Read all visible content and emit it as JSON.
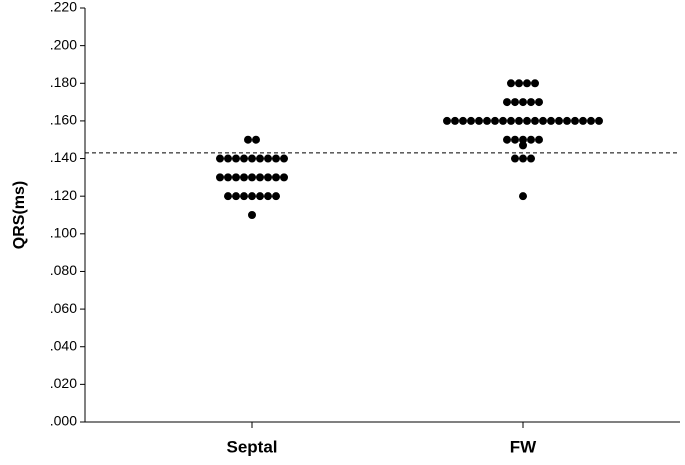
{
  "chart_data": {
    "type": "dotplot",
    "y_label": "QRS(ms)",
    "categories": [
      "Septal",
      "FW"
    ],
    "values": [
      [
        0.15,
        0.15,
        0.14,
        0.14,
        0.14,
        0.14,
        0.14,
        0.14,
        0.14,
        0.14,
        0.14,
        0.13,
        0.13,
        0.13,
        0.13,
        0.13,
        0.13,
        0.13,
        0.13,
        0.13,
        0.12,
        0.12,
        0.12,
        0.12,
        0.12,
        0.12,
        0.12,
        0.11
      ],
      [
        0.18,
        0.18,
        0.18,
        0.18,
        0.17,
        0.17,
        0.17,
        0.17,
        0.17,
        0.16,
        0.16,
        0.16,
        0.16,
        0.16,
        0.16,
        0.16,
        0.16,
        0.16,
        0.16,
        0.16,
        0.16,
        0.16,
        0.16,
        0.16,
        0.16,
        0.16,
        0.16,
        0.16,
        0.16,
        0.15,
        0.15,
        0.15,
        0.15,
        0.15,
        0.147,
        0.14,
        0.14,
        0.14,
        0.12
      ]
    ],
    "color": "#000000",
    "reference_line": 0.143,
    "ylim": [
      0,
      0.22
    ],
    "yticks": [
      {
        "value": 0,
        "label": ".000"
      },
      {
        "value": 0.02,
        "label": ".020"
      },
      {
        "value": 0.04,
        "label": ".040"
      },
      {
        "value": 0.06,
        "label": ".060"
      },
      {
        "value": 0.08,
        "label": ".080"
      },
      {
        "value": 0.1,
        "label": ".100"
      },
      {
        "value": 0.12,
        "label": ".120"
      },
      {
        "value": 0.14,
        "label": ".140"
      },
      {
        "value": 0.16,
        "label": ".160"
      },
      {
        "value": 0.18,
        "label": ".180"
      },
      {
        "value": 0.2,
        "label": ".200"
      },
      {
        "value": 0.22,
        "label": ".220"
      }
    ]
  }
}
